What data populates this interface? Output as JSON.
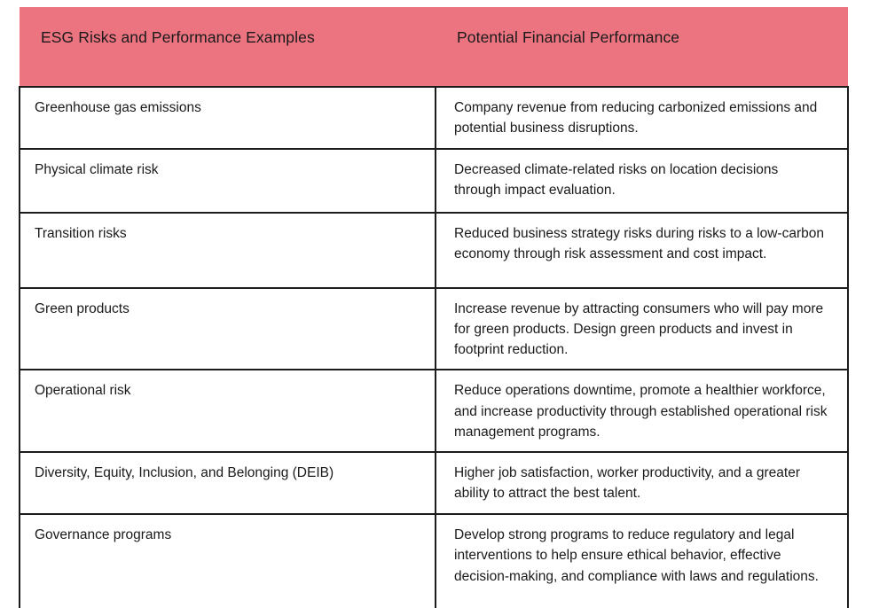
{
  "colors": {
    "header_bg": "#ec7480",
    "border": "#1c1c1c",
    "text": "#1a1a1a"
  },
  "header": {
    "col1": "ESG Risks and Performance Examples",
    "col2": "Potential Financial Performance"
  },
  "table": {
    "rows": [
      {
        "risk": "Greenhouse gas emissions",
        "performance": "Company revenue from reducing carbonized emissions and potential business disruptions."
      },
      {
        "risk": "Physical climate risk",
        "performance": "Decreased climate-related risks on location decisions through impact evaluation."
      },
      {
        "risk": "Transition risks",
        "performance": "Reduced business strategy risks during risks to a low-carbon economy through risk assessment and cost impact."
      },
      {
        "risk": "Green products",
        "performance": "Increase revenue by attracting consumers who will pay more for green products.  Design green products and invest in footprint reduction."
      },
      {
        "risk": "Operational risk",
        "performance": "Reduce operations downtime, promote a healthier workforce, and increase productivity through established operational risk management programs."
      },
      {
        "risk": "Diversity, Equity, Inclusion, and Belonging (DEIB)",
        "performance": "Higher job satisfaction, worker productivity, and a greater ability to attract the best talent."
      },
      {
        "risk": "Governance programs",
        "performance": "Develop strong programs to reduce regulatory and legal interventions to help ensure ethical behavior, effective decision-making, and compliance with laws and regulations."
      }
    ]
  }
}
